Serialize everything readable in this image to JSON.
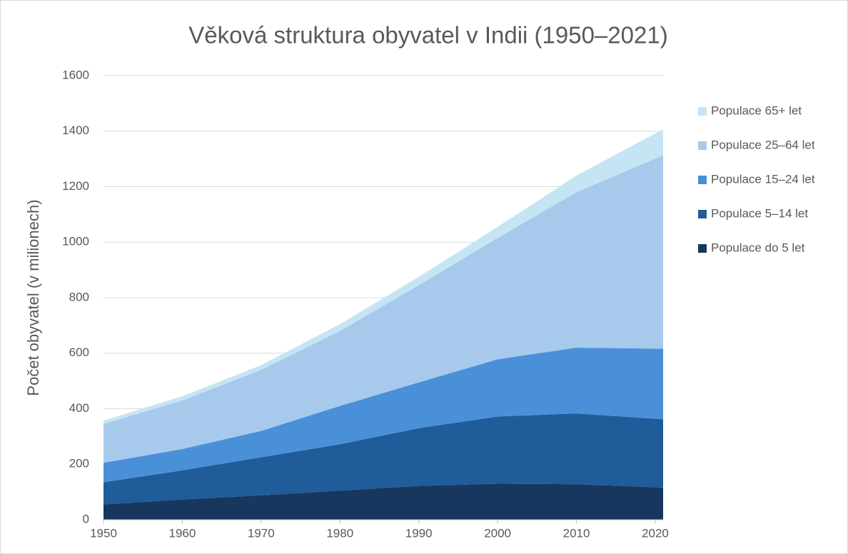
{
  "chart_data": {
    "type": "stacked_area",
    "title": "Věková struktura obyvatel v Indii (1950–2021)",
    "y_label": "Počet obyvatel (v milionech)",
    "x": [
      1950,
      1960,
      1970,
      1980,
      1990,
      2000,
      2010,
      2021
    ],
    "series": [
      {
        "name": "Populace do 5 let",
        "color": "#17375e",
        "values": [
          55,
          73,
          88,
          105,
          122,
          130,
          128,
          116
        ]
      },
      {
        "name": "Populace 5–14 let",
        "color": "#1f5c99",
        "values": [
          80,
          105,
          137,
          167,
          208,
          242,
          255,
          246
        ]
      },
      {
        "name": "Populace 15–24 let",
        "color": "#4a90d9",
        "values": [
          70,
          77,
          95,
          138,
          165,
          206,
          237,
          254
        ]
      },
      {
        "name": "Populace 25–64 let",
        "color": "#a7c9eb",
        "values": [
          140,
          175,
          220,
          270,
          350,
          437,
          560,
          697
        ]
      },
      {
        "name": "Populace 65+ let",
        "color": "#c5e4f4",
        "values": [
          12,
          15,
          17,
          25,
          30,
          40,
          60,
          94
        ]
      }
    ],
    "xlim": [
      1950,
      2021
    ],
    "xticks": [
      1950,
      1960,
      1970,
      1980,
      1990,
      2000,
      2010,
      2020
    ],
    "ylim": [
      0,
      1600
    ],
    "yticks": [
      0,
      200,
      400,
      600,
      800,
      1000,
      1200,
      1400,
      1600
    ],
    "grid": true,
    "legend": "right"
  }
}
